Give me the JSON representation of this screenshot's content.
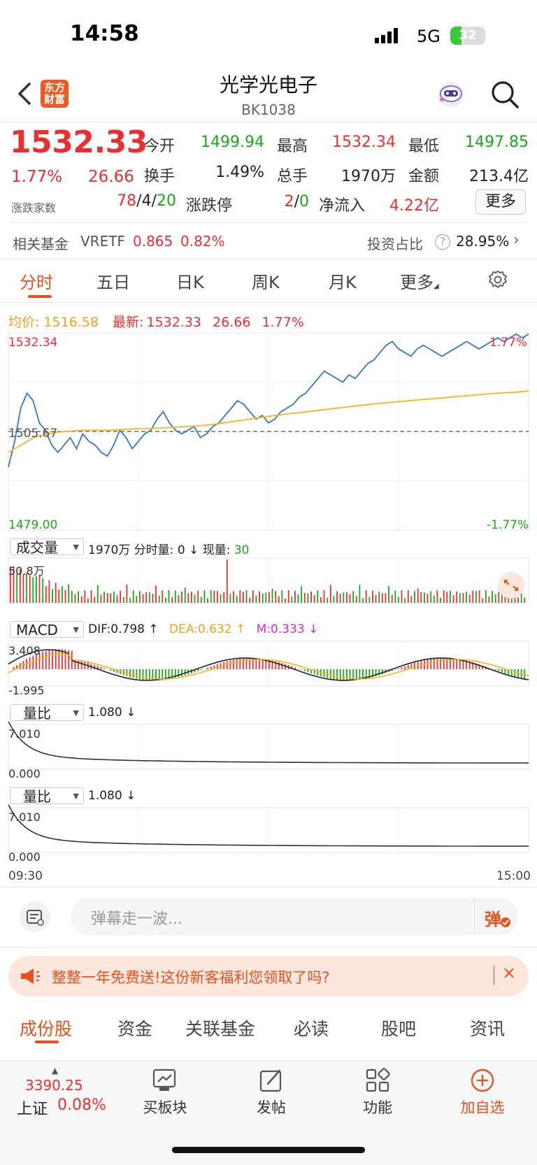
{
  "status_bar": {
    "time": "14:58",
    "network": "5G",
    "battery": "32",
    "battery_level": 0.32
  },
  "header": {
    "title": "光学光电子",
    "code": "BK1038",
    "logo_text": "东方财富"
  },
  "quote": {
    "price": "1532.33",
    "change_pct": "1.77%",
    "change": "26.66",
    "counts_label": "涨跌家数",
    "up": "78",
    "flat": "4",
    "down": "20",
    "fields": [
      {
        "label": "今开",
        "value": "1499.94",
        "color": "green"
      },
      {
        "label": "最高",
        "value": "1532.34",
        "color": "red"
      },
      {
        "label": "最低",
        "value": "1497.85",
        "color": "green"
      },
      {
        "label": "换手",
        "value": "1.49%",
        "color": "black"
      },
      {
        "label": "总手",
        "value": "1970万",
        "color": "black"
      },
      {
        "label": "金额",
        "value": "213.4亿",
        "color": "black"
      }
    ],
    "limit_label": "涨跌停",
    "limit_up": "2",
    "limit_down": "0",
    "netflow_label": "净流入",
    "netflow": "4.22亿",
    "more_button": "更多"
  },
  "fund": {
    "label": "相关基金",
    "name": "VRETF",
    "price": "0.865",
    "pct": "0.82%",
    "inv_label": "投资占比",
    "inv_value": "28.95%"
  },
  "tabs": [
    "分时",
    "五日",
    "日K",
    "周K",
    "月K",
    "更多"
  ],
  "chart_header": {
    "avg_label": "均价:",
    "avg_value": "1516.58",
    "last_label": "最新:",
    "last_value": "1532.33",
    "last_change": "26.66",
    "last_pct": "1.77%"
  },
  "chart_data": {
    "type": "line",
    "price_axis": {
      "max": "1532.34",
      "mid": "1505.67",
      "min": "1479.00",
      "max_pct": "1.77%",
      "min_pct": "-1.77%",
      "ylim": [
        1479.0,
        1532.34
      ],
      "base": 1505.67
    },
    "x_start": "09:30",
    "x_end": "15:00",
    "price_series": [
      1496,
      1503,
      1512,
      1516,
      1514,
      1508,
      1506,
      1502,
      1500,
      1502,
      1504,
      1501,
      1505,
      1503,
      1502,
      1500,
      1499,
      1502,
      1506,
      1504,
      1501,
      1503,
      1505,
      1506,
      1509,
      1511,
      1508,
      1506,
      1505,
      1506,
      1507,
      1504,
      1505,
      1507,
      1508,
      1510,
      1512,
      1514,
      1513,
      1511,
      1509,
      1510,
      1508,
      1509,
      1511,
      1512,
      1513,
      1515,
      1516,
      1518,
      1520,
      1522,
      1521,
      1520,
      1519,
      1521,
      1520,
      1522,
      1524,
      1525,
      1527,
      1529,
      1530,
      1528,
      1527,
      1526,
      1528,
      1529,
      1528,
      1527,
      1526,
      1527,
      1528,
      1529,
      1530,
      1529,
      1528,
      1529,
      1530,
      1531,
      1530,
      1531,
      1532,
      1531,
      1532
    ],
    "avg_series": [
      1500,
      1502,
      1504,
      1505,
      1505.5,
      1505.8,
      1506,
      1506,
      1506,
      1506.2,
      1506.4,
      1506.5,
      1506.6,
      1506.8,
      1507,
      1507.2,
      1507.5,
      1508,
      1508.5,
      1509,
      1509.5,
      1510,
      1510.4,
      1510.8,
      1511.2,
      1511.6,
      1512,
      1512.4,
      1512.8,
      1513.2,
      1513.5,
      1513.8,
      1514.1,
      1514.4,
      1514.7,
      1515,
      1515.3,
      1515.6,
      1515.9,
      1516.1,
      1516.3,
      1516.58
    ],
    "volume": {
      "label": "成交量",
      "total": "1970万",
      "detail_label": "分时量:",
      "detail_value": "0",
      "now_label": "现量:",
      "now_value": "30",
      "max_label": "50.8万"
    },
    "macd": {
      "label": "MACD",
      "dif": "DIF:0.798",
      "dea": "DEA:0.632",
      "m": "M:0.333",
      "max_label": "3.408",
      "min_label": "-1.995"
    },
    "ratio1": {
      "label": "量比",
      "value": "1.080",
      "max_label": "7.010",
      "min_label": "0.000"
    },
    "ratio2": {
      "label": "量比",
      "value": "1.080",
      "max_label": "7.010",
      "min_label": "0.000"
    }
  },
  "comment": {
    "placeholder": "弹幕走一波...",
    "danmu_label": "弹"
  },
  "promo": {
    "text": "整整一年免费送!这份新客福利您领取了吗?",
    "close": "×"
  },
  "bottom_tabs": [
    "成份股",
    "资金",
    "关联基金",
    "必读",
    "股吧",
    "资讯"
  ],
  "footer": {
    "index_value": "3390.25",
    "index_name": "上证",
    "index_pct": "0.08%",
    "buttons": [
      "买板块",
      "发帖",
      "功能",
      "加自选"
    ]
  },
  "colors": {
    "up": "#e93030",
    "down": "#1aa61a",
    "accent": "#e9501e",
    "price_line": "#3575c4",
    "avg_line": "#f5b32a"
  }
}
